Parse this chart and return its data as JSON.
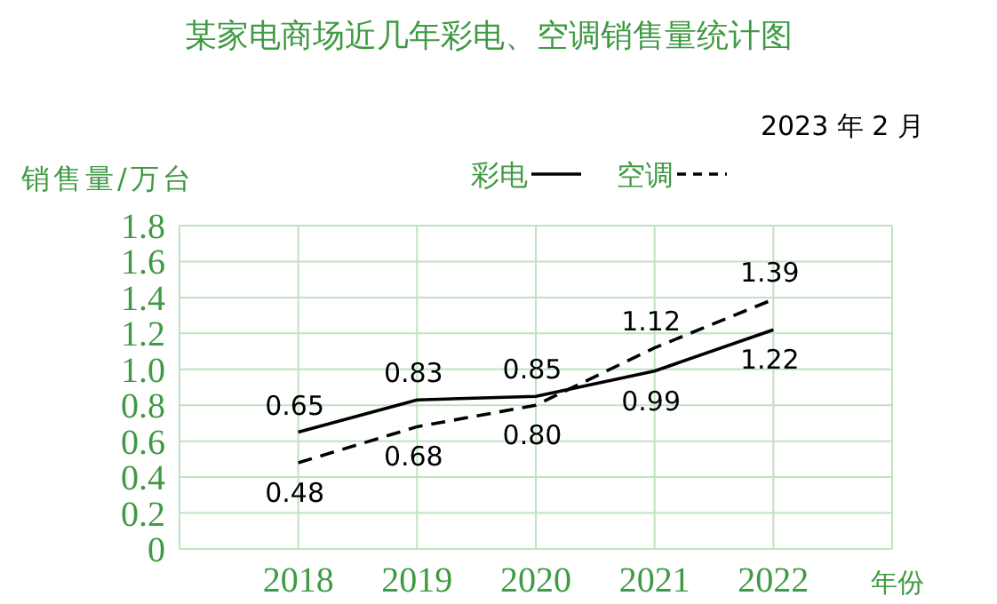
{
  "chart_data": {
    "type": "line",
    "title": "某家电商场近几年彩电、空调销售量统计图",
    "subtitle": "2023 年 2 月",
    "xlabel": "年份",
    "ylabel": "销售量/万台",
    "categories": [
      "2018",
      "2019",
      "2020",
      "2021",
      "2022"
    ],
    "series": [
      {
        "name": "彩电",
        "color": "#000000",
        "line_style": "solid",
        "values": [
          0.65,
          0.83,
          0.85,
          0.99,
          1.22
        ],
        "value_labels": [
          "0.65",
          "0.83",
          "0.85",
          "0.99",
          "1.22"
        ]
      },
      {
        "name": "空调",
        "color": "#000000",
        "line_style": "dashed",
        "values": [
          0.48,
          0.68,
          0.8,
          1.12,
          1.39
        ],
        "value_labels": [
          "0.48",
          "0.68",
          "0.80",
          "1.12",
          "1.39"
        ]
      }
    ],
    "ylim": [
      0,
      1.8
    ],
    "yticks": [
      0,
      0.2,
      0.4,
      0.6,
      0.8,
      {
        "value": 1.0,
        "label": "1.0"
      },
      1.2,
      1.4,
      1.6,
      1.8
    ],
    "grid": true,
    "legend": "top"
  }
}
